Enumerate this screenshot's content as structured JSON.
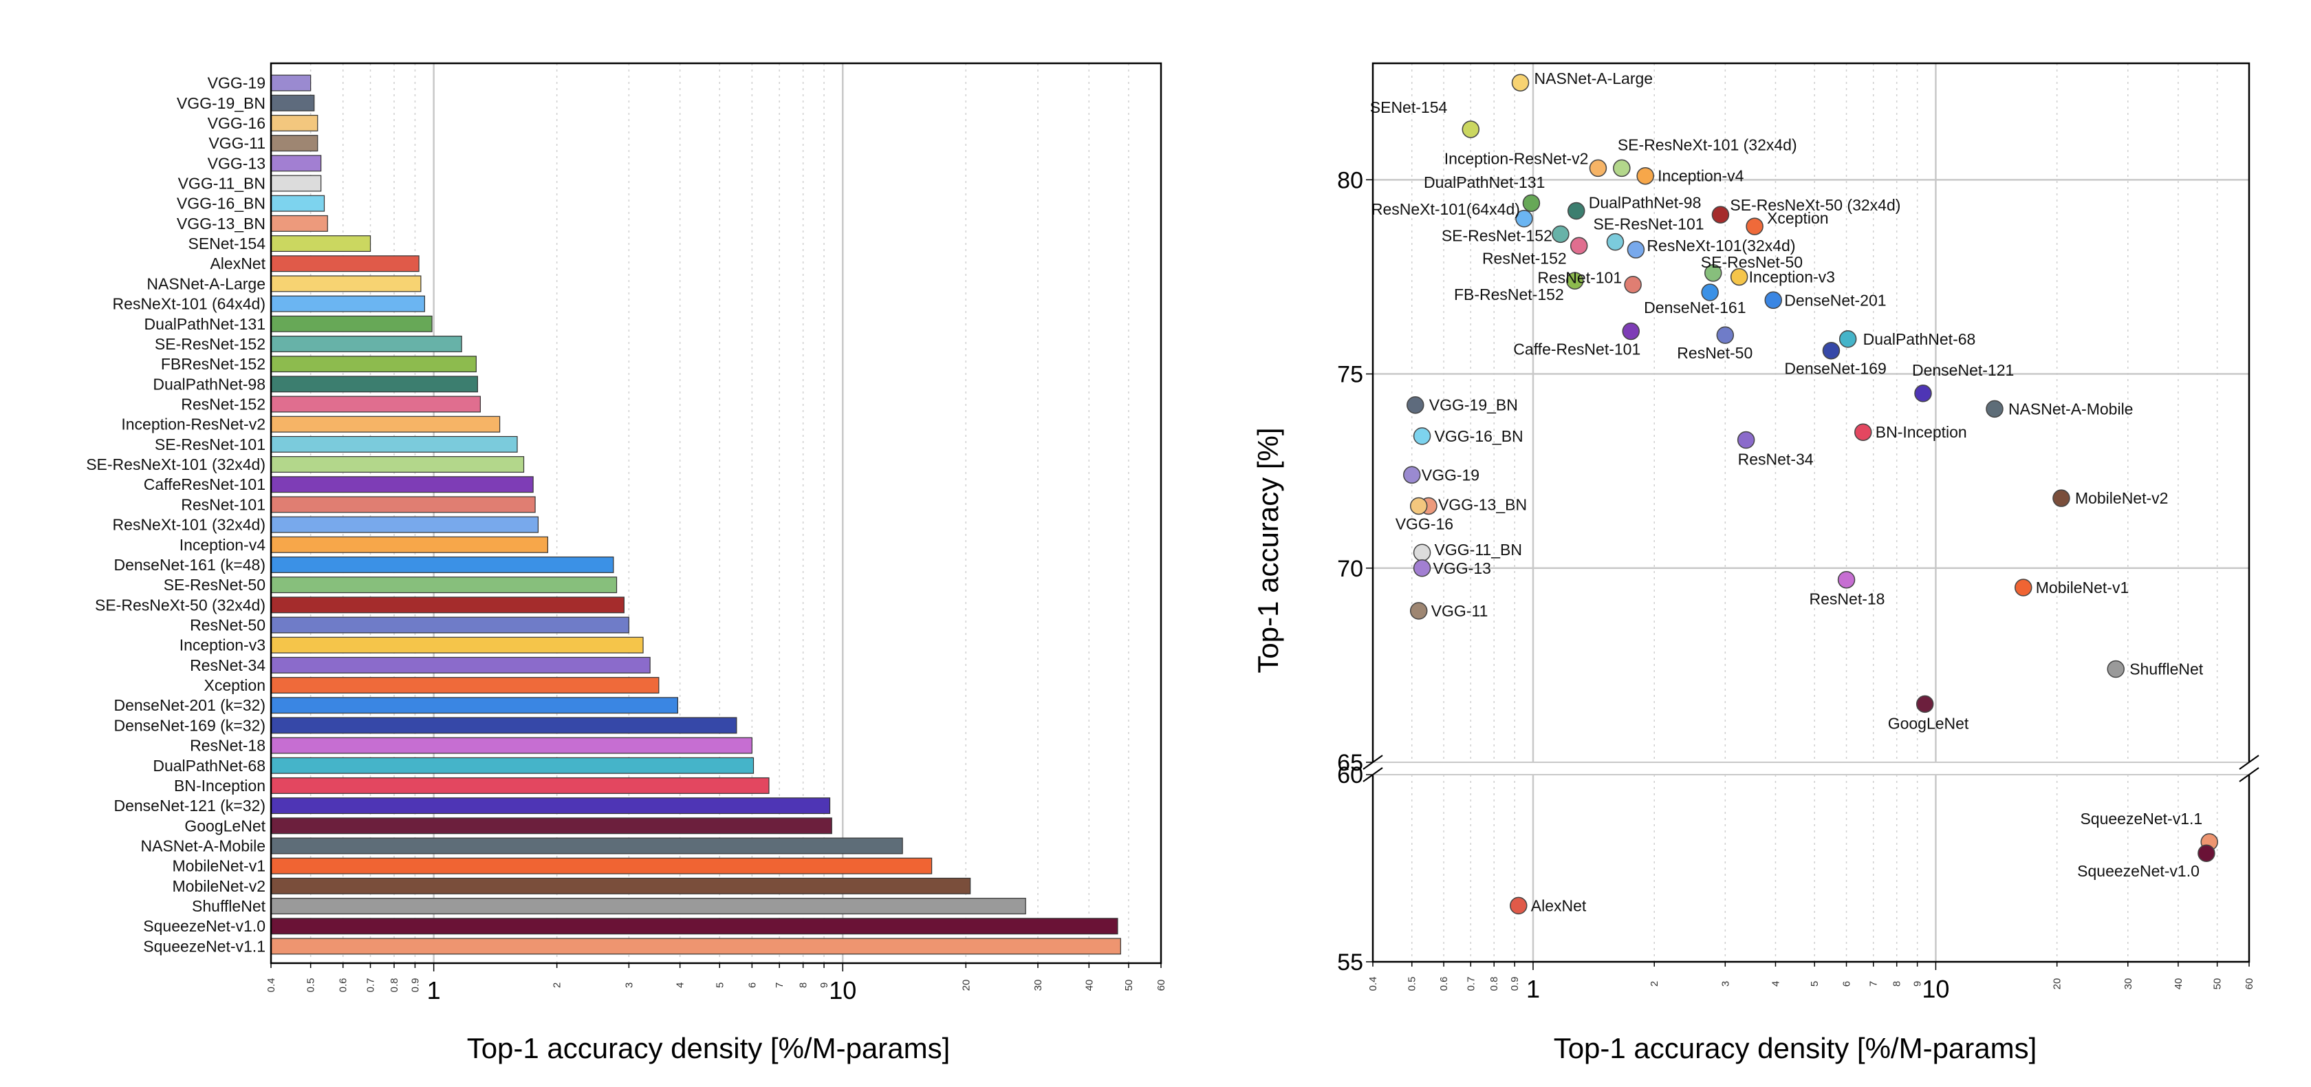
{
  "chart_data": [
    {
      "type": "bar",
      "orientation": "horizontal",
      "xlabel": "Top-1 accuracy density [%/M-params]",
      "ylabel": "",
      "xscale": "log",
      "xlim": [
        0.4,
        60
      ],
      "x_ticks": [
        "0.4",
        "0.5",
        "0.6",
        "0.7",
        "0.8",
        "0.9",
        "1",
        "2",
        "3",
        "4",
        "5",
        "6",
        "7",
        "8",
        "9",
        "10",
        "20",
        "30",
        "40",
        "50",
        "60"
      ],
      "grid": "vertical dotted minor, solid major",
      "categories": [
        "VGG-19",
        "VGG-19_BN",
        "VGG-16",
        "VGG-11",
        "VGG-13",
        "VGG-11_BN",
        "VGG-16_BN",
        "VGG-13_BN",
        "SENet-154",
        "AlexNet",
        "NASNet-A-Large",
        "ResNeXt-101 (64x4d)",
        "DualPathNet-131",
        "SE-ResNet-152",
        "FBResNet-152",
        "DualPathNet-98",
        "ResNet-152",
        "Inception-ResNet-v2",
        "SE-ResNet-101",
        "SE-ResNeXt-101 (32x4d)",
        "CaffeResNet-101",
        "ResNet-101",
        "ResNeXt-101 (32x4d)",
        "Inception-v4",
        "DenseNet-161 (k=48)",
        "SE-ResNet-50",
        "SE-ResNeXt-50 (32x4d)",
        "ResNet-50",
        "Inception-v3",
        "ResNet-34",
        "Xception",
        "DenseNet-201 (k=32)",
        "DenseNet-169 (k=32)",
        "ResNet-18",
        "DualPathNet-68",
        "BN-Inception",
        "DenseNet-121 (k=32)",
        "GoogLeNet",
        "NASNet-A-Mobile",
        "MobileNet-v1",
        "MobileNet-v2",
        "ShuffleNet",
        "SqueezeNet-v1.0",
        "SqueezeNet-v1.1"
      ],
      "values": [
        0.5,
        0.51,
        0.52,
        0.52,
        0.53,
        0.53,
        0.54,
        0.55,
        0.7,
        0.92,
        0.93,
        0.95,
        0.99,
        1.17,
        1.27,
        1.28,
        1.3,
        1.45,
        1.6,
        1.66,
        1.75,
        1.77,
        1.8,
        1.9,
        2.75,
        2.8,
        2.92,
        3.0,
        3.25,
        3.38,
        3.55,
        3.95,
        5.5,
        6.0,
        6.05,
        6.6,
        9.3,
        9.4,
        14.0,
        16.5,
        20.5,
        28.0,
        47.0,
        47.8
      ],
      "colors": [
        "#9a8ad0",
        "#5e6b7d",
        "#f3c77e",
        "#9e8672",
        "#a27fd2",
        "#dcdcdc",
        "#7dd3ee",
        "#ed9a7c",
        "#cbd760",
        "#e05a49",
        "#f7d372",
        "#6bb5f2",
        "#67a857",
        "#67b2a8",
        "#8dbb4e",
        "#3c7e6f",
        "#e06e8f",
        "#f6b466",
        "#7bcbdc",
        "#b3d78b",
        "#7e3db6",
        "#e07e72",
        "#78a9ec",
        "#f7a74a",
        "#3b91e6",
        "#87bf7c",
        "#a52c2c",
        "#6f7cc8",
        "#f5c54a",
        "#8b6bcb",
        "#ef6a3a",
        "#3a86e3",
        "#3648a8",
        "#c66ed2",
        "#45b4c9",
        "#e34760",
        "#4e35b5",
        "#6c1f3d",
        "#5e6d78",
        "#f06433",
        "#7a4e3b",
        "#9a9a9a",
        "#6a1236",
        "#ee9570"
      ]
    },
    {
      "type": "scatter",
      "xlabel": "Top-1 accuracy density [%/M-params]",
      "ylabel": "Top-1 accuracy [%]",
      "xscale": "log",
      "xlim": [
        0.4,
        60
      ],
      "ylim_upper": [
        65,
        83
      ],
      "ylim_lower": [
        55,
        60
      ],
      "y_ticks_upper": [
        "65",
        "70",
        "75",
        "80"
      ],
      "y_ticks_lower": [
        "55",
        "60"
      ],
      "x_ticks": [
        "0.4",
        "0.5",
        "0.6",
        "0.7",
        "0.8",
        "0.9",
        "1",
        "2",
        "3",
        "4",
        "5",
        "6",
        "7",
        "8",
        "9",
        "10",
        "20",
        "30",
        "40",
        "50",
        "60"
      ],
      "points": [
        {
          "label": "NASNet-A-Large",
          "x": 0.93,
          "y": 82.5,
          "color": "#f7d372"
        },
        {
          "label": "SENet-154",
          "x": 0.7,
          "y": 81.3,
          "color": "#cbd760"
        },
        {
          "label": "Inception-ResNet-v2",
          "x": 1.45,
          "y": 80.3,
          "color": "#f6b466"
        },
        {
          "label": "SE-ResNeXt-101 (32x4d)",
          "x": 1.66,
          "y": 80.3,
          "color": "#b3d78b"
        },
        {
          "label": "Inception-v4",
          "x": 1.9,
          "y": 80.1,
          "color": "#f7a74a"
        },
        {
          "label": "DualPathNet-131",
          "x": 0.99,
          "y": 79.4,
          "color": "#67a857"
        },
        {
          "label": "DualPathNet-98",
          "x": 1.28,
          "y": 79.2,
          "color": "#3c7e6f"
        },
        {
          "label": "SE-ResNeXt-50 (32x4d)",
          "x": 2.92,
          "y": 79.1,
          "color": "#a52c2c"
        },
        {
          "label": "ResNeXt-101(64x4d)",
          "x": 0.95,
          "y": 79.0,
          "color": "#6bb5f2"
        },
        {
          "label": "Xception",
          "x": 3.55,
          "y": 78.8,
          "color": "#ef6a3a"
        },
        {
          "label": "SE-ResNet-152",
          "x": 1.17,
          "y": 78.6,
          "color": "#67b2a8"
        },
        {
          "label": "SE-ResNet-101",
          "x": 1.6,
          "y": 78.4,
          "color": "#7bcbdc"
        },
        {
          "label": "ResNeXt-101(32x4d)",
          "x": 1.8,
          "y": 78.2,
          "color": "#78a9ec"
        },
        {
          "label": "ResNet-152",
          "x": 1.3,
          "y": 78.3,
          "color": "#e06e8f"
        },
        {
          "label": "SE-ResNet-50",
          "x": 2.8,
          "y": 77.6,
          "color": "#87bf7c"
        },
        {
          "label": "Inception-v3",
          "x": 3.25,
          "y": 77.5,
          "color": "#f5c54a"
        },
        {
          "label": "FB-ResNet-152",
          "x": 1.27,
          "y": 77.4,
          "color": "#8dbb4e"
        },
        {
          "label": "ResNet-101",
          "x": 1.77,
          "y": 77.3,
          "color": "#e07e72"
        },
        {
          "label": "DenseNet-161",
          "x": 2.75,
          "y": 77.1,
          "color": "#3b91e6"
        },
        {
          "label": "DenseNet-201",
          "x": 3.95,
          "y": 76.9,
          "color": "#3a86e3"
        },
        {
          "label": "Caffe-ResNet-101",
          "x": 1.75,
          "y": 76.1,
          "color": "#7e3db6"
        },
        {
          "label": "ResNet-50",
          "x": 3.0,
          "y": 76.0,
          "color": "#6f7cc8"
        },
        {
          "label": "DualPathNet-68",
          "x": 6.05,
          "y": 75.9,
          "color": "#45b4c9"
        },
        {
          "label": "DenseNet-169",
          "x": 5.5,
          "y": 75.6,
          "color": "#3648a8"
        },
        {
          "label": "DenseNet-121",
          "x": 9.3,
          "y": 74.5,
          "color": "#4e35b5"
        },
        {
          "label": "VGG-19_BN",
          "x": 0.51,
          "y": 74.2,
          "color": "#5e6b7d"
        },
        {
          "label": "NASNet-A-Mobile",
          "x": 14.0,
          "y": 74.1,
          "color": "#5e6d78"
        },
        {
          "label": "VGG-16_BN",
          "x": 0.53,
          "y": 73.4,
          "color": "#7dd3ee"
        },
        {
          "label": "BN-Inception",
          "x": 6.6,
          "y": 73.5,
          "color": "#e34760"
        },
        {
          "label": "ResNet-34",
          "x": 3.38,
          "y": 73.3,
          "color": "#8b6bcb"
        },
        {
          "label": "VGG-19",
          "x": 0.5,
          "y": 72.4,
          "color": "#9a8ad0"
        },
        {
          "label": "MobileNet-v2",
          "x": 20.5,
          "y": 71.8,
          "color": "#7a4e3b"
        },
        {
          "label": "VGG-13_BN",
          "x": 0.55,
          "y": 71.6,
          "color": "#ed9a7c"
        },
        {
          "label": "VGG-16",
          "x": 0.52,
          "y": 71.6,
          "color": "#f3c77e"
        },
        {
          "label": "VGG-11_BN",
          "x": 0.53,
          "y": 70.4,
          "color": "#dcdcdc"
        },
        {
          "label": "VGG-13",
          "x": 0.53,
          "y": 70.0,
          "color": "#a27fd2"
        },
        {
          "label": "ResNet-18",
          "x": 6.0,
          "y": 69.7,
          "color": "#c66ed2"
        },
        {
          "label": "MobileNet-v1",
          "x": 16.5,
          "y": 69.5,
          "color": "#f06433"
        },
        {
          "label": "VGG-11",
          "x": 0.52,
          "y": 68.9,
          "color": "#9e8672"
        },
        {
          "label": "ShuffleNet",
          "x": 28.0,
          "y": 67.4,
          "color": "#9a9a9a"
        },
        {
          "label": "GoogLeNet",
          "x": 9.4,
          "y": 66.5,
          "color": "#6c1f3d"
        },
        {
          "label": "SqueezeNet-v1.1",
          "x": 47.8,
          "y": 58.2,
          "color": "#ee9570"
        },
        {
          "label": "SqueezeNet-v1.0",
          "x": 47.0,
          "y": 57.9,
          "color": "#6a1236"
        },
        {
          "label": "AlexNet",
          "x": 0.92,
          "y": 56.5,
          "color": "#e05a49"
        }
      ]
    }
  ]
}
